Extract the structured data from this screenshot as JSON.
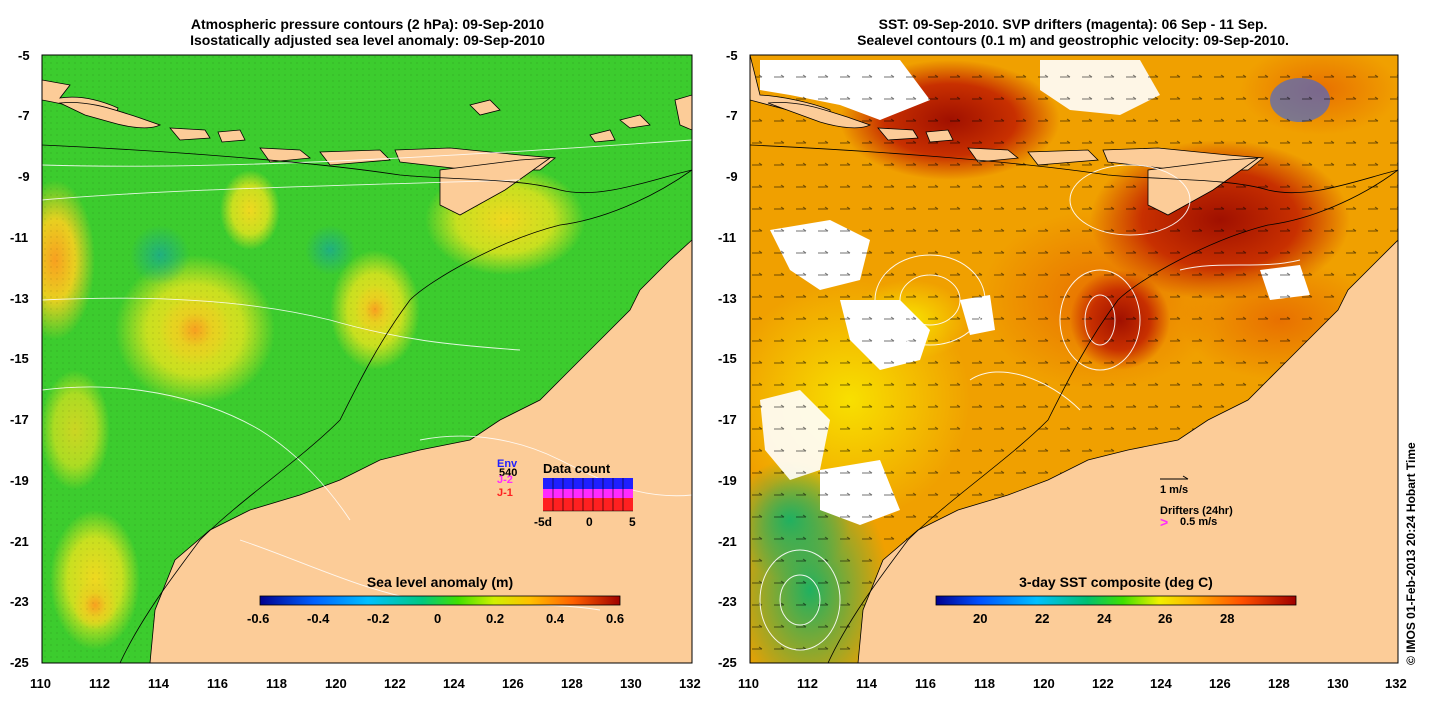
{
  "left_panel": {
    "title_line1": "Atmospheric pressure contours (2 hPa): 09-Sep-2010",
    "title_line2": "Isostatically adjusted sea level anomaly: 09-Sep-2010",
    "x_ticks": [
      "110",
      "112",
      "114",
      "116",
      "118",
      "120",
      "122",
      "124",
      "126",
      "128",
      "130",
      "132"
    ],
    "y_ticks": [
      "-5",
      "-7",
      "-9",
      "-11",
      "-13",
      "-15",
      "-17",
      "-19",
      "-21",
      "-23",
      "-25"
    ],
    "colorbar_label": "Sea level anomaly (m)",
    "colorbar_ticks": [
      "-0.6",
      "-0.4",
      "-0.2",
      "0",
      "0.2",
      "0.4",
      "0.6"
    ],
    "data_count": {
      "title": "Data count",
      "legend": [
        "Env",
        "J-2",
        "J-1"
      ],
      "overlay_number": "540",
      "axis_ticks": [
        "-5d",
        "0",
        "5"
      ],
      "colors": {
        "env": "#1f1fff",
        "j2": "#ff2aff",
        "j1": "#ff2020"
      }
    }
  },
  "right_panel": {
    "title_line1": "SST: 09-Sep-2010. SVP drifters (magenta): 06 Sep - 11 Sep.",
    "title_line2": "Sealevel contours (0.1 m) and geostrophic velocity: 09-Sep-2010.",
    "x_ticks": [
      "110",
      "112",
      "114",
      "116",
      "118",
      "120",
      "122",
      "124",
      "126",
      "128",
      "130",
      "132"
    ],
    "y_ticks": [
      "-5",
      "-7",
      "-9",
      "-11",
      "-13",
      "-15",
      "-17",
      "-19",
      "-21",
      "-23",
      "-25"
    ],
    "colorbar_label": "3-day SST composite (deg C)",
    "colorbar_ticks": [
      "20",
      "22",
      "24",
      "26",
      "28"
    ],
    "velocity_scale_label": "1 m/s",
    "drifters_label": "Drifters (24hr)",
    "drifters_speed_label": "0.5 m/s"
  },
  "credit": "© IMOS 01-Feb-2013 20:24 Hobart Time",
  "colors": {
    "land": "#fccc98",
    "ocean_green": "#3ccc2e"
  }
}
